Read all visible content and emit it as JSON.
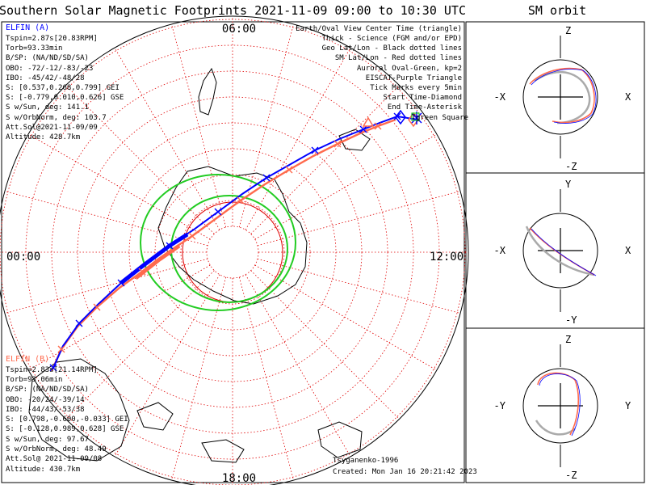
{
  "title": "Southern Solar Magnetic Footprints 2021-11-09 09:00 to 10:30 UTC",
  "orbit_title": "SM orbit",
  "colors": {
    "sat_a": "#0000ff",
    "sat_b": "#ff6a4d",
    "geo_grid": "#000000",
    "sm_grid": "#e00000",
    "auroral_oval": "#22cc22",
    "eiscat": "#cc44cc",
    "grid": "#a0a0a0"
  },
  "map": {
    "mlt_labels": {
      "top": "06:00",
      "left": "00:00",
      "right": "12:00",
      "bottom": "18:00"
    }
  },
  "legend": [
    {
      "text": "Earth/Oval View Center Time (triangle)",
      "color": "#000000"
    },
    {
      "text": "Thick - Science (FGM and/or EPD)",
      "color": "#000000"
    },
    {
      "text": "Geo Lat/Lon - Black dotted lines",
      "color": "#000000"
    },
    {
      "text": "SM Lat/Lon - Red dotted lines",
      "color": "#ff0000"
    },
    {
      "text": "Auroral Oval-Green, kp=2",
      "color": "#22cc22"
    },
    {
      "text": "EISCAT-Purple Triangle",
      "color": "#cc66cc"
    },
    {
      "text": "Tick Marks every 5min",
      "color": "#000000"
    },
    {
      "text": "Start Time-Diamond",
      "color": "#000000"
    },
    {
      "text": "End Time-Asterisk",
      "color": "#000000"
    },
    {
      "text": "Tgreen Square",
      "color": "#22cc22"
    }
  ],
  "elfin_a": {
    "name": "ELFIN (A)",
    "lines": [
      "Tspin=2.87s[20.83RPM]",
      "Torb=93.33min",
      "B/SP: (NA/ND/SD/SA)",
      "OBO: -72/-12/-83/-23",
      "IBO: -45/42/-48/28",
      "S: [0.537,0.268,0.799] GEI",
      "S: [-0.779,0.010,0.626] GSE",
      "S w/Sun, deg: 141.1",
      "S w/OrbNorm, deg: 103.7",
      "Att.Sol@2021-11-09/09",
      "Altitude: 428.7km"
    ]
  },
  "elfin_b": {
    "name": "ELFIN (B)",
    "lines": [
      "Tspin=2.83s[21.14RPM]",
      "Torb=93.06min",
      "B/SP: (NA/ND/SD/SA)",
      "OBO: -20/24/-39/14",
      "IBO: -44/43/-53/38",
      "S: [0.798,-0.600,-0.033] GEI",
      "S: [-0.128,0.989,0.628] GSE",
      "S w/Sun, deg: 97.67",
      "S w/OrbNorm, deg: 48.49",
      "Att.Sol@ 2021-11-09/08",
      "Altitude: 430.7km"
    ]
  },
  "footer": {
    "model": "Tsyganenko-1996",
    "created": "Created: Mon Jan 16 20:21:42 2023"
  },
  "orbit_panels": [
    {
      "top": "Z",
      "bottom": "-Z",
      "left": "-X",
      "right": "X"
    },
    {
      "top": "Y",
      "bottom": "-Y",
      "left": "-X",
      "right": "X"
    },
    {
      "top": "Z",
      "bottom": "-Z",
      "left": "-Y",
      "right": "Y"
    }
  ],
  "chart_data": {
    "type": "line",
    "projection": "south-pole SM polar map",
    "series": [
      {
        "name": "ELFIN (A)",
        "color": "#0000ff",
        "track_deg": [
          [
            -83,
            130
          ],
          [
            -75,
            118
          ],
          [
            -67,
            108
          ],
          [
            -61,
            97
          ],
          [
            -58,
            86
          ],
          [
            -57,
            75
          ],
          [
            -58,
            66
          ],
          [
            -60,
            58
          ],
          [
            -64,
            51
          ],
          [
            -69,
            44
          ],
          [
            -75,
            38
          ],
          [
            -80,
            33
          ],
          [
            -84,
            26
          ],
          [
            -88,
            20
          ],
          [
            -86,
            -60
          ],
          [
            -81,
            -70
          ],
          [
            -75,
            -76
          ],
          [
            -69,
            -82
          ],
          [
            -64,
            -87
          ],
          [
            -60,
            -92
          ],
          [
            -57,
            -97
          ]
        ]
      },
      {
        "name": "ELFIN (B)",
        "color": "#ff6a4d",
        "track_deg": [
          [
            -82,
            128
          ],
          [
            -74,
            117
          ],
          [
            -66,
            107
          ],
          [
            -60,
            96
          ],
          [
            -57,
            86
          ],
          [
            -56,
            76
          ],
          [
            -57,
            67
          ],
          [
            -59,
            59
          ],
          [
            -63,
            52
          ],
          [
            -68,
            45
          ],
          [
            -74,
            39
          ],
          [
            -79,
            34
          ],
          [
            -84,
            27
          ],
          [
            -88,
            15
          ],
          [
            -86,
            -58
          ],
          [
            -80,
            -68
          ],
          [
            -74,
            -75
          ],
          [
            -68,
            -81
          ],
          [
            -63,
            -86
          ],
          [
            -59,
            -91
          ]
        ]
      }
    ],
    "auroral_oval_kp": 2
  }
}
